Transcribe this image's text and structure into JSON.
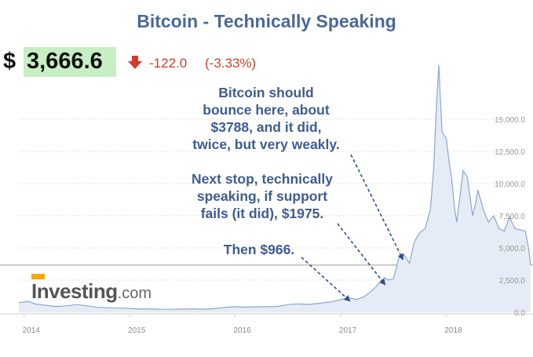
{
  "header": {
    "title": "Bitcoin - Technically Speaking",
    "currency_symbol": "$",
    "price": "3,666.6",
    "change": "-122.0",
    "change_pct": "(-3.33%)",
    "direction_icon": "arrow-down-icon"
  },
  "colors": {
    "title": "#4a6898",
    "price_bg": "#c7eec4",
    "down": "#d23b2c",
    "series_line": "#8aa6cf",
    "series_fill": "#e6ecf5",
    "annotation": "#3d5c92",
    "logo_accent": "#f6a800"
  },
  "annotations": {
    "a1": [
      "Bitcoin should",
      "bounce here, about",
      "$3788, and it did,",
      "twice, but very weakly."
    ],
    "a2": [
      "Next stop, technically",
      "speaking,  if support",
      "fails (it did), $1975."
    ],
    "a3": [
      "Then $966."
    ]
  },
  "logo": {
    "main": "Investing",
    "suffix": ".com"
  },
  "chart_data": {
    "type": "area",
    "title": "Bitcoin - Technically Speaking",
    "xlabel": "",
    "ylabel": "",
    "x_ticks": [
      "2014",
      "2015",
      "2016",
      "2017",
      "2018"
    ],
    "y_ticks": [
      "0.0",
      "2,500.0",
      "5,000.0",
      "7,500.0",
      "10,000.0",
      "12,500.0",
      "15,000.0"
    ],
    "ylim": [
      0,
      19500
    ],
    "xlim": [
      2013.95,
      2018.8
    ],
    "grid": "horizontal dotted",
    "current_price_line": 3666.6,
    "series": [
      {
        "x": [
          2013.95,
          2014.0,
          2014.05,
          2014.1,
          2014.2,
          2014.3,
          2014.4,
          2014.5,
          2014.6,
          2014.7,
          2014.8,
          2014.9,
          2015.0,
          2015.1,
          2015.2,
          2015.3,
          2015.4,
          2015.5,
          2015.6,
          2015.7,
          2015.8,
          2015.9,
          2016.0,
          2016.1,
          2016.2,
          2016.3,
          2016.4,
          2016.5,
          2016.6,
          2016.7,
          2016.8,
          2016.9,
          2017.0,
          2017.08,
          2017.15,
          2017.22,
          2017.3,
          2017.38,
          2017.42,
          2017.45,
          2017.5,
          2017.55,
          2017.6,
          2017.65,
          2017.7,
          2017.75,
          2017.8,
          2017.85,
          2017.88,
          2017.91,
          2017.93,
          2017.96,
          2018.0,
          2018.03,
          2018.05,
          2018.08,
          2018.1,
          2018.13,
          2018.16,
          2018.2,
          2018.25,
          2018.28,
          2018.3,
          2018.35,
          2018.4,
          2018.45,
          2018.5,
          2018.55,
          2018.6,
          2018.65,
          2018.7,
          2018.75,
          2018.78,
          2018.8
        ],
        "values": [
          750,
          800,
          850,
          650,
          550,
          450,
          500,
          600,
          500,
          380,
          350,
          320,
          300,
          250,
          270,
          240,
          230,
          250,
          270,
          240,
          280,
          380,
          430,
          400,
          420,
          430,
          450,
          600,
          650,
          610,
          700,
          800,
          980,
          1100,
          1000,
          1200,
          1700,
          2400,
          2700,
          2500,
          2600,
          4200,
          4500,
          3800,
          5500,
          6200,
          6500,
          8000,
          11000,
          16500,
          19200,
          14000,
          13500,
          11500,
          10500,
          8000,
          7000,
          9000,
          11000,
          10500,
          7500,
          8500,
          9500,
          8000,
          7000,
          7500,
          6500,
          6300,
          7400,
          6500,
          6400,
          6300,
          5000,
          3666.6
        ]
      }
    ]
  }
}
